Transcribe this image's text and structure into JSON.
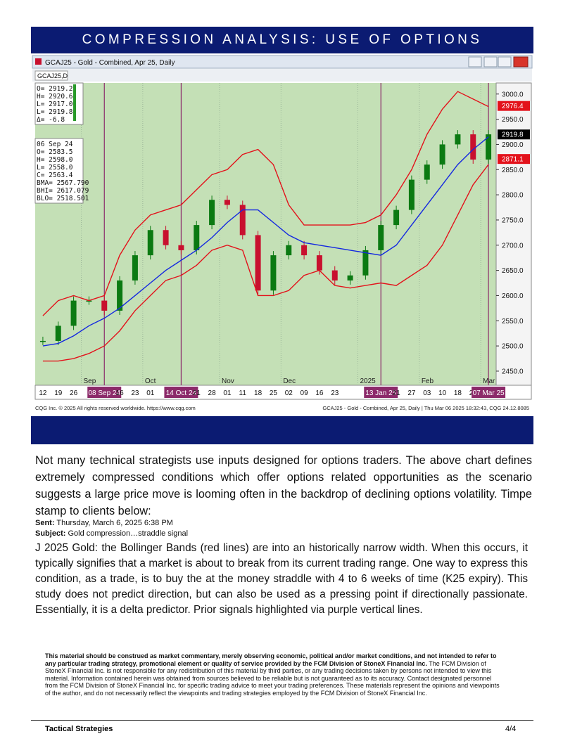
{
  "header": {
    "title": "COMPRESSION ANALYSIS: USE OF OPTIONS"
  },
  "chart_data": {
    "type": "candlestick",
    "title": "GCAJ25 - Gold - Combined, Apr 25, Daily",
    "symbol": "GCAJ25,D",
    "categories": [
      "12",
      "19",
      "26",
      null,
      "08 Sep 24",
      "16",
      "23",
      "01",
      null,
      "14 Oct 24",
      "21",
      "28",
      "01",
      "11",
      "18",
      "25",
      "02",
      "09",
      "16",
      "23",
      null,
      null,
      "13 Jan 25",
      "21",
      "27",
      "03",
      "10",
      "18",
      "24",
      "07 Mar 25"
    ],
    "months": [
      null,
      null,
      null,
      "Sep",
      null,
      null,
      null,
      "Oct",
      null,
      null,
      null,
      null,
      "Nov",
      null,
      null,
      null,
      "Dec",
      null,
      null,
      null,
      null,
      "2025",
      null,
      null,
      null,
      "Feb",
      null,
      null,
      null,
      "Mar"
    ],
    "candles": {
      "up_color": "#0b7a12",
      "down_color": "#c8102e",
      "values": [
        2510,
        2540,
        2590,
        2590,
        2570,
        2630,
        2680,
        2730,
        2700,
        2690,
        2740,
        2790,
        2780,
        2720,
        2610,
        2680,
        2700,
        2680,
        2650,
        2630,
        2640,
        2690,
        2740,
        2770,
        2830,
        2860,
        2900,
        2920,
        2870,
        2920
      ]
    },
    "series": [
      {
        "color": "#e3121b",
        "values": [
          2560,
          2590,
          2600,
          2590,
          2600,
          2680,
          2730,
          2760,
          2770,
          2780,
          2810,
          2840,
          2850,
          2880,
          2890,
          2860,
          2780,
          2740,
          2740,
          2740,
          2740,
          2745,
          2760,
          2800,
          2850,
          2920,
          2970,
          3005,
          2990,
          2975
        ]
      },
      {
        "color": "#e3121b",
        "values": [
          2470,
          2470,
          2475,
          2485,
          2500,
          2530,
          2570,
          2600,
          2630,
          2640,
          2660,
          2690,
          2700,
          2690,
          2600,
          2600,
          2610,
          2640,
          2650,
          2620,
          2615,
          2620,
          2625,
          2620,
          2640,
          2660,
          2700,
          2760,
          2820,
          2860
        ]
      },
      {
        "color": "#1428e0",
        "values": [
          2500,
          2505,
          2520,
          2540,
          2555,
          2575,
          2600,
          2625,
          2650,
          2670,
          2690,
          2715,
          2745,
          2770,
          2770,
          2745,
          2720,
          2705,
          2700,
          2695,
          2690,
          2685,
          2680,
          2700,
          2740,
          2780,
          2820,
          2860,
          2890,
          2915
        ]
      }
    ],
    "ylim": [
      2422,
      3022
    ],
    "yticks": [
      {
        "value": 3000,
        "label": "3000.0"
      },
      {
        "value": 2950,
        "label": "2950.0"
      },
      {
        "value": 2900,
        "label": "2900.0"
      },
      {
        "value": 2850,
        "label": "2850.0"
      },
      {
        "value": 2800,
        "label": "2800.0"
      },
      {
        "value": 2750,
        "label": "2750.0"
      },
      {
        "value": 2700,
        "label": "2700.0"
      },
      {
        "value": 2650,
        "label": "2650.0"
      },
      {
        "value": 2600,
        "label": "2600.0"
      },
      {
        "value": 2550,
        "label": "2550.0"
      },
      {
        "value": 2500,
        "label": "2500.0"
      },
      {
        "value": 2450,
        "label": "2450.0"
      }
    ],
    "price_flags": [
      {
        "value": 2976.4,
        "color": "#e3121b"
      },
      {
        "value": 2919.8,
        "color": "#000000"
      },
      {
        "value": 2871.1,
        "color": "#e3121b"
      }
    ],
    "info_current": [
      "O= 2919.2",
      "H= 2920.6",
      "L= 2917.0",
      "L= 2919.8",
      "Δ=   -6.8"
    ],
    "info_bar": [
      "06 Sep 24",
      "O=    2583.5",
      "H=    2598.0",
      "L=    2558.0",
      "C=    2563.4",
      "BMA= 2567.790",
      "BHI= 2617.079",
      "BLO= 2518.501"
    ],
    "signal_color": "#8c2a6a",
    "plot_color": "#c4e0b6",
    "footer_left": "CQG Inc. © 2025 All rights reserved worldwide. https://www.cqg.com",
    "footer_right": "GCAJ25 - Gold - Combined, Apr 25, Daily | Thu Mar 06 2025 18:32:43, CQG 24.12.8085"
  },
  "body": {
    "intro": "Not many technical strategists use inputs designed for options traders. The above chart defines extremely compressed conditions which offer options related opportunities as the scenario suggests a large price move is looming often in the backdrop of declining options volatility. Timpe stamp to clients below:",
    "sent_label": "Sent:",
    "sent": "Thursday, March 6, 2025 6:38 PM",
    "subject_label": "Subject:",
    "subject": "Gold compression…straddle signal",
    "message": "J 2025 Gold: the Bollinger Bands (red lines) are into an historically narrow width. When this occurs, it typically signifies that a market is about to break from its current trading range. One way to express this condition, as a trade, is to buy the at the money straddle with 4 to 6 weeks of time (K25 expiry). This study does not predict direction, but can also be used as a pressing point if directionally passionate. Essentially, it is a delta predictor. Prior signals highlighted via purple vertical lines."
  },
  "disclaimer": {
    "bold": "This material should be construed as market commentary, merely observing economic, political and/or market conditions, and not intended to refer to any particular trading strategy, promotional element or quality of service provided by the FCM Division of StoneX Financial Inc.",
    "text": "The FCM Division of StoneX Financial Inc. is not responsible for any redistribution of this material by third parties, or any trading decisions taken by persons not intended to view this material. Information contained herein was obtained from sources believed to be reliable but is not guaranteed as to its accuracy. Contact designated personnel from the FCM Division of StoneX Financial Inc. for specific trading advice to meet your trading preferences. These materials represent the opinions and viewpoints of the author, and do not necessarily reflect the viewpoints and trading strategies employed by the FCM Division of StoneX Financial Inc."
  },
  "footer": {
    "left": "Tactical Strategies",
    "right": "4/4"
  }
}
